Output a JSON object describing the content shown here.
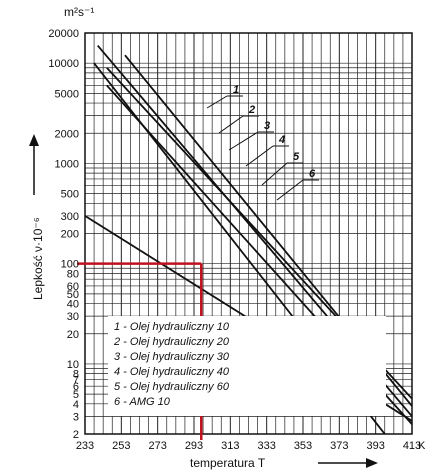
{
  "chart_data": {
    "type": "line",
    "title": "",
    "xlabel": "temperatura T",
    "xunit": "K",
    "ylabel": "Lepkość ν·10⁻⁶",
    "yunit": "m²s⁻¹",
    "yscale": "log",
    "xlim": [
      233,
      413
    ],
    "ylim": [
      2,
      20000
    ],
    "grid": true,
    "legend_position": "bottom-left",
    "x_ticks": [
      "233",
      "253",
      "273",
      "293",
      "313",
      "333",
      "353",
      "373",
      "393",
      "413"
    ],
    "y_ticks": [
      "2",
      "3",
      "4",
      "5",
      "6",
      "7",
      "8",
      "10",
      "20",
      "30",
      "40",
      "50",
      "60",
      "80",
      "100",
      "200",
      "300",
      "500",
      "1000",
      "2000",
      "5000",
      "10000",
      "20000"
    ],
    "series": [
      {
        "name": "Olej hydrauliczny 10",
        "label": "1",
        "x": [
          245,
          413
        ],
        "y": [
          9000,
          4.5
        ]
      },
      {
        "name": "Olej hydrauliczny 20",
        "label": "2",
        "x": [
          255,
          413
        ],
        "y": [
          12000,
          3.8
        ]
      },
      {
        "name": "Olej hydrauliczny 30",
        "label": "3",
        "x": [
          240,
          413
        ],
        "y": [
          15000,
          3.0
        ]
      },
      {
        "name": "Olej hydrauliczny 40",
        "label": "4",
        "x": [
          245,
          413
        ],
        "y": [
          6000,
          2.5
        ]
      },
      {
        "name": "Olej hydrauliczny 60",
        "label": "5",
        "x": [
          238,
          398
        ],
        "y": [
          10000,
          2.0
        ]
      },
      {
        "name": "AMG-10",
        "label": "6",
        "x": [
          233,
          413
        ],
        "y": [
          300,
          2.7
        ]
      }
    ],
    "series_numbers": [
      "1",
      "2",
      "3",
      "4",
      "5",
      "6"
    ],
    "legend": [
      {
        "num": "1",
        "text": "1 - Olej hydrauliczny 10"
      },
      {
        "num": "2",
        "text": "2 - Olej hydrauliczny 20"
      },
      {
        "num": "3",
        "text": "3 - Olej hydrauliczny 30"
      },
      {
        "num": "4",
        "text": "4 - Olej hydrauliczny 40"
      },
      {
        "num": "5",
        "text": "5 - Olej hydrauliczny 60"
      },
      {
        "num": "6",
        "text": "6 - AMG 10"
      }
    ],
    "annotation": {
      "type": "reading-lines",
      "color": "#c0121e",
      "x": 297,
      "y": 100
    }
  }
}
